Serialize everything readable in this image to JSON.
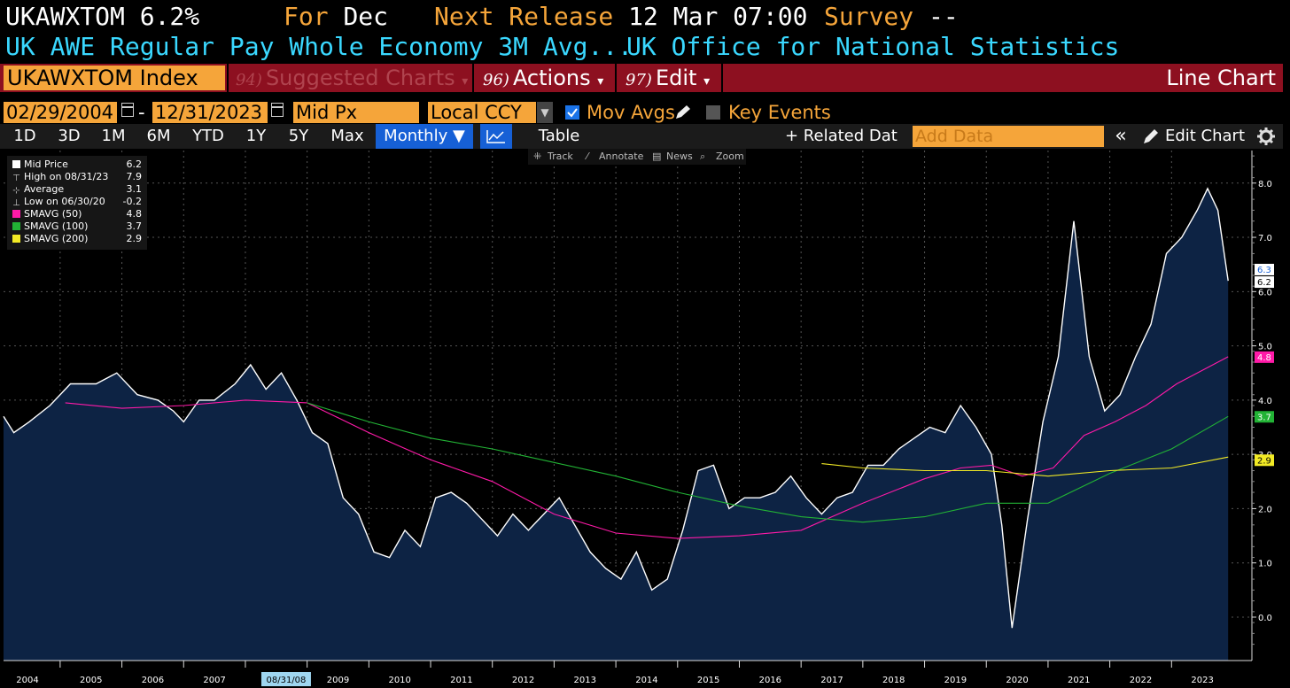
{
  "header": {
    "ticker": "UKAWXTOM",
    "value": "6.2%",
    "for_label": "For",
    "for_value": "Dec",
    "next_release_label": "Next Release",
    "next_release_value": "12 Mar 07:00",
    "survey_label": "Survey",
    "survey_value": "--",
    "description": "UK AWE Regular Pay Whole Economy 3M Avg...",
    "source": "UK Office for National Statistics"
  },
  "toolbar": {
    "security": "UKAWXTOM Index",
    "suggested_num": "94)",
    "suggested_label": "Suggested Charts",
    "actions_num": "96)",
    "actions_label": "Actions",
    "edit_num": "97)",
    "edit_label": "Edit",
    "chart_type": "Line Chart",
    "dropdown_arrow": "▾"
  },
  "options": {
    "start_date": "02/29/2004",
    "date_sep": "-",
    "end_date": "12/31/2023",
    "field": "Mid Px",
    "currency": "Local CCY",
    "mov_avgs_label": "Mov Avgs",
    "mov_avgs_checked": true,
    "key_events_label": "Key Events",
    "key_events_checked": false
  },
  "periods": {
    "buttons": [
      "1D",
      "3D",
      "1M",
      "6M",
      "YTD",
      "1Y",
      "5Y",
      "Max"
    ],
    "frequency": "Monthly ▼",
    "table_label": "Table",
    "related_label": "+ Related Dat",
    "add_data_placeholder": "Add Data",
    "collapse": "«",
    "edit_chart_label": "Edit Chart"
  },
  "chart_tools": [
    "Track",
    "Annotate",
    "News",
    "Zoom"
  ],
  "legend": [
    {
      "label": "Mid Price",
      "value": "6.2",
      "color": "#ffffff",
      "marker": "square"
    },
    {
      "label": "High on 08/31/23",
      "value": "7.9",
      "color": "#cccccc",
      "marker": "high"
    },
    {
      "label": "Average",
      "value": "3.1",
      "color": "#cccccc",
      "marker": "avg"
    },
    {
      "label": "Low on 06/30/20",
      "value": "-0.2",
      "color": "#cccccc",
      "marker": "low"
    },
    {
      "label": "SMAVG (50)",
      "value": "4.8",
      "color": "#ff1aa8",
      "marker": "square"
    },
    {
      "label": "SMAVG (100)",
      "value": "3.7",
      "color": "#22b335",
      "marker": "square"
    },
    {
      "label": "SMAVG (200)",
      "value": "2.9",
      "color": "#f2ea25",
      "marker": "square"
    }
  ],
  "chart_data": {
    "type": "area",
    "x_start": "2004-02",
    "x_end": "2023-12",
    "ylim": [
      -0.8,
      8.6
    ],
    "y_ticks": [
      "0.0",
      "1.0",
      "2.0",
      "3.0",
      "4.0",
      "5.0",
      "6.0",
      "7.0",
      "8.0"
    ],
    "x_ticks": [
      "2004",
      "2005",
      "2006",
      "2007",
      "08/31/08",
      "2009",
      "2010",
      "2011",
      "2012",
      "2013",
      "2014",
      "2015",
      "2016",
      "2017",
      "2018",
      "2019",
      "2020",
      "2021",
      "2022",
      "2023"
    ],
    "highlighted_x_tick": "08/31/08",
    "grid": true,
    "series": [
      {
        "name": "Mid Price",
        "color": "#ffffff",
        "fill": "#0d2344",
        "points": [
          [
            "2004-02",
            3.7
          ],
          [
            "2004-04",
            3.4
          ],
          [
            "2004-07",
            3.6
          ],
          [
            "2004-11",
            3.9
          ],
          [
            "2005-03",
            4.3
          ],
          [
            "2005-08",
            4.3
          ],
          [
            "2005-12",
            4.5
          ],
          [
            "2006-04",
            4.1
          ],
          [
            "2006-08",
            4.0
          ],
          [
            "2006-11",
            3.8
          ],
          [
            "2007-01",
            3.6
          ],
          [
            "2007-04",
            4.0
          ],
          [
            "2007-07",
            4.0
          ],
          [
            "2007-11",
            4.3
          ],
          [
            "2008-02",
            4.65
          ],
          [
            "2008-05",
            4.2
          ],
          [
            "2008-08",
            4.5
          ],
          [
            "2008-11",
            4.0
          ],
          [
            "2009-02",
            3.4
          ],
          [
            "2009-05",
            3.2
          ],
          [
            "2009-08",
            2.2
          ],
          [
            "2009-11",
            1.9
          ],
          [
            "2010-02",
            1.2
          ],
          [
            "2010-05",
            1.1
          ],
          [
            "2010-08",
            1.6
          ],
          [
            "2010-11",
            1.3
          ],
          [
            "2011-02",
            2.2
          ],
          [
            "2011-05",
            2.3
          ],
          [
            "2011-08",
            2.1
          ],
          [
            "2011-11",
            1.8
          ],
          [
            "2012-02",
            1.5
          ],
          [
            "2012-05",
            1.9
          ],
          [
            "2012-08",
            1.6
          ],
          [
            "2012-11",
            1.9
          ],
          [
            "2013-02",
            2.2
          ],
          [
            "2013-05",
            1.7
          ],
          [
            "2013-08",
            1.2
          ],
          [
            "2013-11",
            0.9
          ],
          [
            "2014-02",
            0.7
          ],
          [
            "2014-05",
            1.2
          ],
          [
            "2014-08",
            0.5
          ],
          [
            "2014-11",
            0.7
          ],
          [
            "2015-02",
            1.6
          ],
          [
            "2015-05",
            2.7
          ],
          [
            "2015-08",
            2.8
          ],
          [
            "2015-11",
            2.0
          ],
          [
            "2016-02",
            2.2
          ],
          [
            "2016-05",
            2.2
          ],
          [
            "2016-08",
            2.3
          ],
          [
            "2016-11",
            2.6
          ],
          [
            "2017-02",
            2.2
          ],
          [
            "2017-05",
            1.9
          ],
          [
            "2017-08",
            2.2
          ],
          [
            "2017-11",
            2.3
          ],
          [
            "2018-02",
            2.8
          ],
          [
            "2018-05",
            2.8
          ],
          [
            "2018-08",
            3.1
          ],
          [
            "2018-11",
            3.3
          ],
          [
            "2019-02",
            3.5
          ],
          [
            "2019-05",
            3.4
          ],
          [
            "2019-08",
            3.9
          ],
          [
            "2019-11",
            3.5
          ],
          [
            "2020-02",
            3.0
          ],
          [
            "2020-04",
            1.7
          ],
          [
            "2020-06",
            -0.2
          ],
          [
            "2020-09",
            1.8
          ],
          [
            "2020-12",
            3.6
          ],
          [
            "2021-03",
            4.8
          ],
          [
            "2021-06",
            7.3
          ],
          [
            "2021-09",
            4.8
          ],
          [
            "2021-12",
            3.8
          ],
          [
            "2022-03",
            4.1
          ],
          [
            "2022-06",
            4.8
          ],
          [
            "2022-09",
            5.4
          ],
          [
            "2022-12",
            6.7
          ],
          [
            "2023-03",
            7.0
          ],
          [
            "2023-06",
            7.5
          ],
          [
            "2023-08",
            7.9
          ],
          [
            "2023-10",
            7.5
          ],
          [
            "2023-12",
            6.2
          ]
        ]
      },
      {
        "name": "SMAVG (50)",
        "color": "#ff1aa8",
        "points": [
          [
            "2005-02",
            3.95
          ],
          [
            "2006-01",
            3.85
          ],
          [
            "2007-01",
            3.9
          ],
          [
            "2008-01",
            4.0
          ],
          [
            "2009-01",
            3.95
          ],
          [
            "2010-01",
            3.4
          ],
          [
            "2011-01",
            2.9
          ],
          [
            "2012-01",
            2.5
          ],
          [
            "2013-01",
            1.9
          ],
          [
            "2014-01",
            1.55
          ],
          [
            "2015-01",
            1.45
          ],
          [
            "2016-01",
            1.5
          ],
          [
            "2017-01",
            1.6
          ],
          [
            "2018-01",
            2.1
          ],
          [
            "2019-01",
            2.55
          ],
          [
            "2019-08",
            2.75
          ],
          [
            "2020-02",
            2.8
          ],
          [
            "2020-08",
            2.6
          ],
          [
            "2021-02",
            2.75
          ],
          [
            "2021-08",
            3.35
          ],
          [
            "2022-02",
            3.6
          ],
          [
            "2022-08",
            3.9
          ],
          [
            "2023-02",
            4.3
          ],
          [
            "2023-12",
            4.8
          ]
        ]
      },
      {
        "name": "SMAVG (100)",
        "color": "#22b335",
        "points": [
          [
            "2009-01",
            3.95
          ],
          [
            "2010-01",
            3.6
          ],
          [
            "2011-01",
            3.3
          ],
          [
            "2012-01",
            3.1
          ],
          [
            "2013-01",
            2.85
          ],
          [
            "2014-01",
            2.6
          ],
          [
            "2015-01",
            2.3
          ],
          [
            "2016-01",
            2.05
          ],
          [
            "2017-01",
            1.85
          ],
          [
            "2018-01",
            1.75
          ],
          [
            "2019-01",
            1.85
          ],
          [
            "2020-01",
            2.1
          ],
          [
            "2021-01",
            2.1
          ],
          [
            "2022-01",
            2.65
          ],
          [
            "2023-01",
            3.1
          ],
          [
            "2023-12",
            3.7
          ]
        ]
      },
      {
        "name": "SMAVG (200)",
        "color": "#f2ea25",
        "points": [
          [
            "2017-05",
            2.83
          ],
          [
            "2018-01",
            2.75
          ],
          [
            "2019-01",
            2.7
          ],
          [
            "2020-01",
            2.7
          ],
          [
            "2021-01",
            2.6
          ],
          [
            "2022-01",
            2.7
          ],
          [
            "2023-01",
            2.75
          ],
          [
            "2023-12",
            2.95
          ]
        ]
      }
    ],
    "last_value_labels": [
      {
        "text": "6.3",
        "value": 6.3,
        "bg": "#ffffff",
        "fg": "#1660d6"
      },
      {
        "text": "6.2",
        "value": 6.2,
        "bg": "#ffffff",
        "fg": "#000000"
      },
      {
        "text": "4.8",
        "value": 4.8,
        "bg": "#ff1aa8",
        "fg": "#ffffff"
      },
      {
        "text": "3.7",
        "value": 3.7,
        "bg": "#22b335",
        "fg": "#ffffff"
      },
      {
        "text": "2.9",
        "value": 2.9,
        "bg": "#f2ea25",
        "fg": "#000000"
      }
    ]
  }
}
